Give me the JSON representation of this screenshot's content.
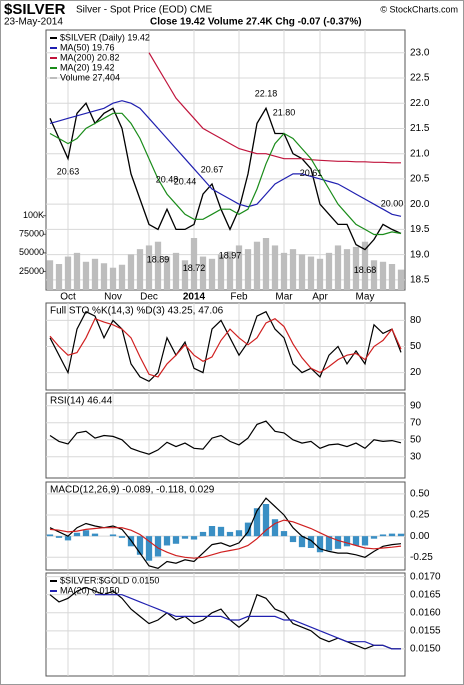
{
  "header": {
    "symbol": "$SILVER",
    "name": "Silver - Spot Price (EOD) CME",
    "date": "23-May-2014",
    "summary": "Close 19.42 Volume 27.4K Chg -0.07 (-0.37%)",
    "credit": "© StockCharts.com"
  },
  "chart_data": [
    {
      "type": "line",
      "categories": [
        null,
        null,
        "Oct",
        null,
        null,
        null,
        null,
        "Nov",
        null,
        null,
        null,
        "Dec",
        null,
        null,
        null,
        null,
        "2014",
        null,
        null,
        null,
        null,
        "Feb",
        null,
        null,
        null,
        null,
        "Mar",
        null,
        null,
        null,
        "Apr",
        null,
        null,
        null,
        null,
        "May",
        null,
        null,
        null,
        null
      ],
      "ylim": [
        18.3,
        23.45
      ],
      "yticks": [
        18.5,
        {
          "value": 19,
          "label": "19.0"
        },
        19.5,
        {
          "value": 20,
          "label": "20.0"
        },
        20.5,
        {
          "value": 21,
          "label": "21.0"
        },
        21.5,
        {
          "value": 22,
          "label": "22.0"
        },
        22.5,
        {
          "value": 23,
          "label": "23.0"
        }
      ],
      "y2lim": [
        0,
        350000
      ],
      "y2ticks": [
        25000,
        50000,
        75000,
        {
          "value": 100000,
          "label": "100K"
        }
      ],
      "grid": true,
      "series": [
        {
          "name": "$SILVER (Daily) 19.42",
          "color": "#000000",
          "values": [
            21.7,
            21.3,
            20.9,
            21.8,
            22.0,
            21.6,
            21.8,
            21.9,
            21.5,
            20.6,
            20.1,
            19.6,
            19.5,
            19.9,
            19.5,
            19.5,
            19.6,
            20.2,
            20.4,
            19.9,
            19.5,
            19.9,
            20.6,
            21.6,
            21.9,
            21.4,
            21.4,
            21.0,
            20.9,
            20.7,
            20.0,
            19.8,
            19.6,
            19.6,
            19.2,
            19.1,
            19.3,
            19.6,
            19.5,
            19.42
          ]
        },
        {
          "name": "MA(50) 19.76",
          "color": "#2020b0",
          "values": [
            21.6,
            21.65,
            21.7,
            21.75,
            21.8,
            21.85,
            21.9,
            22.0,
            22.05,
            22.0,
            21.9,
            21.7,
            21.5,
            21.3,
            21.1,
            20.9,
            20.7,
            20.5,
            20.3,
            20.2,
            20.1,
            20.0,
            19.95,
            20.0,
            20.2,
            20.4,
            20.5,
            20.6,
            20.6,
            20.55,
            20.5,
            20.45,
            20.4,
            20.3,
            20.2,
            20.1,
            20.0,
            19.9,
            19.8,
            19.76
          ]
        },
        {
          "name": "MA(200) 20.82",
          "color": "#c0143c",
          "values": [
            null,
            null,
            null,
            null,
            null,
            null,
            null,
            null,
            null,
            null,
            null,
            23.0,
            22.7,
            22.4,
            22.1,
            21.9,
            21.7,
            21.5,
            21.4,
            21.3,
            21.2,
            21.1,
            21.05,
            21.0,
            21.0,
            20.95,
            20.9,
            20.9,
            20.9,
            20.88,
            20.87,
            20.86,
            20.85,
            20.85,
            20.84,
            20.84,
            20.83,
            20.83,
            20.82,
            20.82
          ]
        },
        {
          "name": "MA(20) 19.42",
          "color": "#1a8c1a",
          "values": [
            21.4,
            21.3,
            21.2,
            21.3,
            21.5,
            21.6,
            21.7,
            21.8,
            21.8,
            21.6,
            21.3,
            20.9,
            20.5,
            20.2,
            20.0,
            19.8,
            19.7,
            19.7,
            19.8,
            19.9,
            19.9,
            19.8,
            19.9,
            20.3,
            20.8,
            21.2,
            21.4,
            21.3,
            21.1,
            20.9,
            20.6,
            20.3,
            20.0,
            19.8,
            19.6,
            19.5,
            19.4,
            19.4,
            19.45,
            19.42
          ]
        },
        {
          "name": "Volume 27,404",
          "color": "#bdbdbd",
          "type": "bar",
          "axis": "y2",
          "values": [
            40000,
            35000,
            45000,
            50000,
            38000,
            42000,
            36000,
            30000,
            34000,
            48000,
            55000,
            60000,
            65000,
            45000,
            50000,
            40000,
            70000,
            45000,
            42000,
            48000,
            52000,
            60000,
            55000,
            65000,
            70000,
            60000,
            50000,
            55000,
            48000,
            45000,
            42000,
            50000,
            60000,
            55000,
            58000,
            65000,
            40000,
            38000,
            35000,
            27404
          ]
        }
      ],
      "annotations": [
        {
          "at": 2,
          "value": 20.63
        },
        {
          "at": 13,
          "value": 20.48
        },
        {
          "at": 15,
          "value": 20.44
        },
        {
          "at": 18,
          "value": 20.67
        },
        {
          "at": 24,
          "value": 22.18
        },
        {
          "at": 26,
          "value": 21.8,
          "label": "21.80"
        },
        {
          "at": 29,
          "value": 20.61
        },
        {
          "at": 38,
          "value": 20,
          "label": "20.00"
        },
        {
          "at": 12,
          "value": 18.89
        },
        {
          "at": 16,
          "value": 18.72
        },
        {
          "at": 20,
          "value": 18.97
        },
        {
          "at": 35,
          "value": 18.68
        }
      ]
    },
    {
      "type": "line",
      "title": "Full STO %K(14,3) %D(3) 43.25, 47.06",
      "ylim": [
        0,
        100
      ],
      "yticks": [
        20,
        50,
        80
      ],
      "grid": true,
      "series": [
        {
          "color": "#000000",
          "values": [
            60,
            40,
            20,
            70,
            90,
            85,
            60,
            80,
            70,
            30,
            15,
            10,
            20,
            60,
            40,
            55,
            25,
            20,
            70,
            80,
            60,
            40,
            55,
            85,
            90,
            70,
            60,
            30,
            20,
            25,
            15,
            40,
            50,
            30,
            45,
            30,
            75,
            65,
            70,
            43.25
          ]
        },
        {
          "color": "#d02020",
          "values": [
            62,
            50,
            40,
            43,
            60,
            82,
            78,
            75,
            70,
            60,
            38,
            18,
            15,
            30,
            40,
            52,
            40,
            33,
            38,
            57,
            70,
            60,
            52,
            60,
            77,
            82,
            73,
            53,
            37,
            25,
            20,
            27,
            35,
            40,
            42,
            35,
            50,
            57,
            70,
            47.06
          ]
        }
      ]
    },
    {
      "type": "line",
      "title": "RSI(14) 46.44",
      "ylim": [
        5,
        105
      ],
      "yticks": [
        30,
        50,
        70,
        90
      ],
      "grid": true,
      "series": [
        {
          "color": "#000000",
          "values": [
            55,
            48,
            45,
            58,
            60,
            52,
            55,
            54,
            50,
            40,
            36,
            33,
            38,
            47,
            42,
            46,
            40,
            39,
            52,
            55,
            48,
            44,
            52,
            68,
            72,
            60,
            58,
            50,
            46,
            48,
            40,
            44,
            45,
            42,
            46,
            40,
            50,
            48,
            49,
            46.44
          ]
        }
      ]
    },
    {
      "type": "line",
      "title": "MACD(12,26,9) -0.089, -0.118, 0.029",
      "ylim": [
        -0.4,
        0.64
      ],
      "yticks": [
        {
          "value": 0.5,
          "label": "0.50"
        },
        0.25,
        {
          "value": 0,
          "label": "0.00"
        },
        -0.25
      ],
      "grid": true,
      "series": [
        {
          "color": "#3a8fc4",
          "type": "bar",
          "values": [
            0.02,
            -0.02,
            -0.05,
            0.04,
            0.07,
            0.03,
            0,
            0.02,
            -0.02,
            -0.12,
            -0.22,
            -0.29,
            -0.24,
            -0.11,
            -0.09,
            -0.03,
            -0.04,
            0.05,
            0.12,
            0.11,
            0.05,
            0.07,
            0.16,
            0.33,
            0.38,
            0.2,
            0.06,
            -0.07,
            -0.13,
            -0.14,
            -0.19,
            -0.17,
            -0.15,
            -0.12,
            -0.11,
            -0.11,
            -0.03,
            0.02,
            0.03,
            0.029
          ]
        },
        {
          "color": "#000000",
          "values": [
            0.1,
            0.05,
            0,
            0.1,
            0.15,
            0.12,
            0.1,
            0.12,
            0.08,
            -0.05,
            -0.2,
            -0.35,
            -0.38,
            -0.3,
            -0.32,
            -0.28,
            -0.3,
            -0.2,
            -0.1,
            -0.08,
            -0.12,
            -0.08,
            0.05,
            0.3,
            0.45,
            0.35,
            0.25,
            0.1,
            0,
            -0.05,
            -0.15,
            -0.18,
            -0.2,
            -0.2,
            -0.22,
            -0.25,
            -0.18,
            -0.12,
            -0.1,
            -0.089
          ]
        },
        {
          "color": "#d02020",
          "values": [
            0.08,
            0.07,
            0.05,
            0.06,
            0.08,
            0.09,
            0.1,
            0.1,
            0.1,
            0.07,
            0.02,
            -0.06,
            -0.14,
            -0.19,
            -0.23,
            -0.25,
            -0.26,
            -0.25,
            -0.22,
            -0.19,
            -0.17,
            -0.15,
            -0.11,
            -0.03,
            0.07,
            0.15,
            0.19,
            0.17,
            0.13,
            0.09,
            0.04,
            -0.01,
            -0.05,
            -0.08,
            -0.11,
            -0.14,
            -0.15,
            -0.14,
            -0.13,
            -0.118
          ]
        }
      ]
    },
    {
      "type": "line",
      "ylim": [
        0.01425,
        0.0171
      ],
      "yticks": [
        {
          "value": 0.015,
          "label": "0.0150"
        },
        {
          "value": 0.0155,
          "label": "0.0155"
        },
        {
          "value": 0.016,
          "label": "0.0160"
        },
        {
          "value": 0.0165,
          "label": "0.0165"
        },
        {
          "value": 0.017,
          "label": "0.0170"
        }
      ],
      "grid": true,
      "series": [
        {
          "name": "$SILVER:$GOLD 0.0150",
          "color": "#000000",
          "values": [
            0.0165,
            0.0163,
            0.0164,
            0.0166,
            0.0167,
            0.0166,
            0.0165,
            0.0166,
            0.0164,
            0.0161,
            0.0159,
            0.0157,
            0.0158,
            0.016,
            0.0158,
            0.0159,
            0.0157,
            0.0158,
            0.016,
            0.0161,
            0.0158,
            0.0156,
            0.0158,
            0.0165,
            0.0164,
            0.0161,
            0.016,
            0.0157,
            0.0156,
            0.0155,
            0.0153,
            0.0152,
            0.0153,
            0.0152,
            0.0151,
            0.015,
            0.0151,
            0.0151,
            0.015,
            0.015
          ]
        },
        {
          "name": "MA(20) 0.0150",
          "color": "#2020b0",
          "values": [
            null,
            null,
            null,
            null,
            null,
            0.0165,
            0.0165,
            0.0165,
            0.0165,
            0.0164,
            0.0163,
            0.0162,
            0.0161,
            0.016,
            0.0159,
            0.0159,
            0.0159,
            0.0159,
            0.0159,
            0.0159,
            0.0158,
            0.0158,
            0.0159,
            0.0159,
            0.0159,
            0.0159,
            0.0158,
            0.0158,
            0.0157,
            0.0156,
            0.0155,
            0.0154,
            0.0153,
            0.0152,
            0.0152,
            0.0152,
            0.0151,
            0.0151,
            0.015,
            0.015
          ]
        }
      ]
    }
  ]
}
